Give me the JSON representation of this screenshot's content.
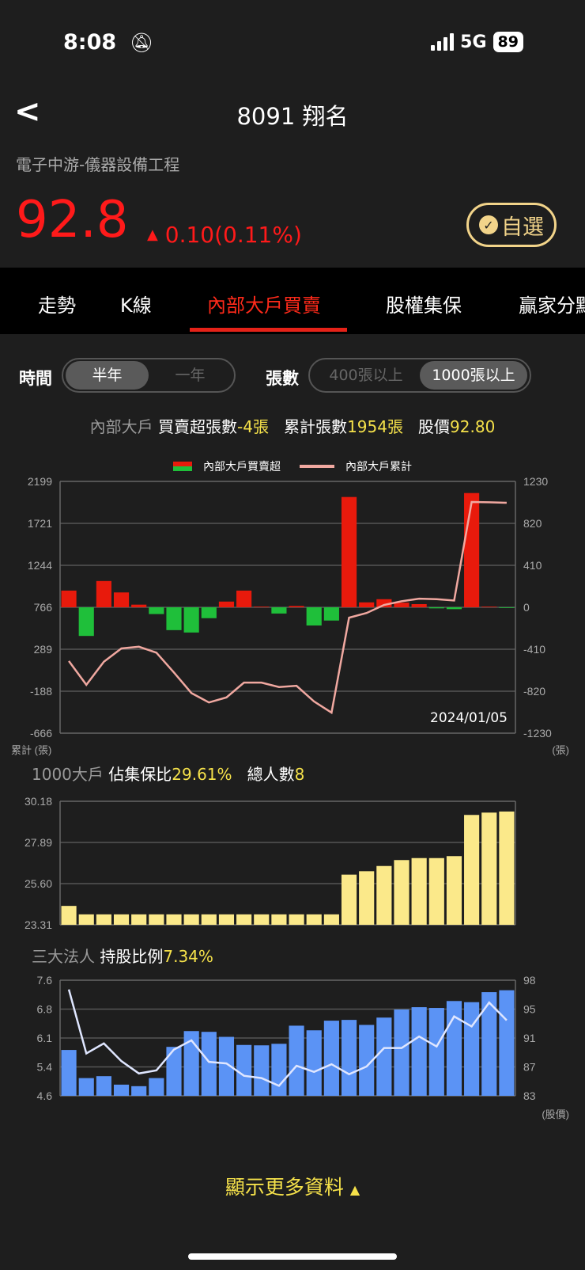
{
  "status": {
    "time": "8:08",
    "network": "5G",
    "battery": "89",
    "icons": [
      "bell-slash-icon",
      "signal-icon"
    ]
  },
  "header": {
    "back_icon": "chevron-left-icon",
    "title": "8091 翔名",
    "industry": "電子中游-儀器設備工程",
    "price": "92.8",
    "change_arrow": "▲",
    "change": "0.10(0.11%)",
    "fav_label": "自選",
    "fav_icon": "check-circle-icon"
  },
  "tabs": [
    {
      "label": "走勢"
    },
    {
      "label": "K線"
    },
    {
      "label": "內部大戶買賣",
      "active": true
    },
    {
      "label": "股權集保"
    },
    {
      "label": "贏家分點"
    }
  ],
  "filters": {
    "time_label": "時間",
    "time_options": [
      "半年",
      "一年"
    ],
    "time_selected": "半年",
    "count_label": "張數",
    "count_options": [
      "400張以上",
      "1000張以上"
    ],
    "count_selected": "1000張以上"
  },
  "summary": {
    "prefix": "內部大戶",
    "net_label": "買賣超張數",
    "net_value": "-4張",
    "cum_label": "累計張數",
    "cum_value": "1954張",
    "price_label": "股價",
    "price_value": "92.80"
  },
  "colors": {
    "up": "#e81a0c",
    "down": "#1fbf3a",
    "cum_line": "#f0a8a0",
    "hold_bar": "#fbe98a",
    "inst_bar": "#5b93f5",
    "price_line": "#dfe6ff",
    "accent": "#f5e14a",
    "active_tab": "#e52218"
  },
  "chart_data": [
    {
      "type": "bar+line",
      "legend": [
        "內部大戶買賣超",
        "內部大戶累計"
      ],
      "legend_placement": "top",
      "left_ticks": [
        "2199",
        "1721",
        "1244",
        "766",
        "289",
        "-188",
        "-666"
      ],
      "right_ticks": [
        "1230",
        "820",
        "410",
        "0",
        "-410",
        "-820",
        "-1230"
      ],
      "left_unit": "累計 (張)",
      "right_unit": "(張)",
      "date_label": "2024/01/05",
      "grid": true,
      "bars": [
        190,
        -326,
        299,
        169,
        30,
        -77,
        -260,
        -287,
        -124,
        65,
        190,
        3,
        -71,
        15,
        -207,
        -151,
        1255,
        56,
        92,
        53,
        36,
        -12,
        -21,
        1300,
        0,
        -4
      ],
      "line": [
        -525,
        -757,
        -532,
        -402,
        -385,
        -443,
        -637,
        -838,
        -930,
        -881,
        -736,
        -736,
        -779,
        -767,
        -920,
        -1029,
        -102,
        -56,
        23,
        59,
        84,
        79,
        66,
        1029,
        1026,
        1021
      ],
      "right_range": [
        -1230,
        1230
      ]
    },
    {
      "type": "bar",
      "title_prefix": "1000大戶",
      "ratio_label": "佔集保比",
      "ratio_value": "29.61%",
      "count_label": "總人數",
      "count_value": "8",
      "ticks": [
        "30.18",
        "27.89",
        "25.60",
        "23.31"
      ],
      "ylim": [
        23.31,
        30.18
      ],
      "grid": true,
      "values": [
        24.36,
        23.89,
        23.89,
        23.89,
        23.89,
        23.89,
        23.89,
        23.89,
        23.89,
        23.89,
        23.89,
        23.89,
        23.89,
        23.89,
        23.89,
        23.89,
        26.1,
        26.29,
        26.58,
        26.91,
        27.02,
        27.02,
        27.13,
        29.42,
        29.55,
        29.61
      ]
    },
    {
      "type": "bar+line",
      "title_prefix": "三大法人",
      "ratio_label": "持股比例",
      "ratio_value": "7.34%",
      "left_ticks": [
        "7.6",
        "6.8",
        "6.1",
        "5.4",
        "4.6"
      ],
      "right_ticks": [
        "98",
        "95",
        "91",
        "87",
        "83"
      ],
      "right_unit": "(股價)",
      "ylim": [
        4.6,
        7.6
      ],
      "right_range": [
        83,
        98
      ],
      "grid": true,
      "bars": [
        5.79,
        5.06,
        5.11,
        4.89,
        4.85,
        5.06,
        5.87,
        6.28,
        6.26,
        6.13,
        5.92,
        5.91,
        5.95,
        6.42,
        6.3,
        6.55,
        6.57,
        6.44,
        6.63,
        6.84,
        6.9,
        6.88,
        7.06,
        7.03,
        7.29,
        7.34
      ],
      "line": [
        96.8,
        88.5,
        89.8,
        87.5,
        85.9,
        86.3,
        89.0,
        90.2,
        87.4,
        87.2,
        85.6,
        85.3,
        84.3,
        86.9,
        86.1,
        87.1,
        85.8,
        86.8,
        89.2,
        89.2,
        90.7,
        89.4,
        93.3,
        92.0,
        95.1,
        92.8
      ]
    }
  ],
  "more_label": "顯示更多資料"
}
